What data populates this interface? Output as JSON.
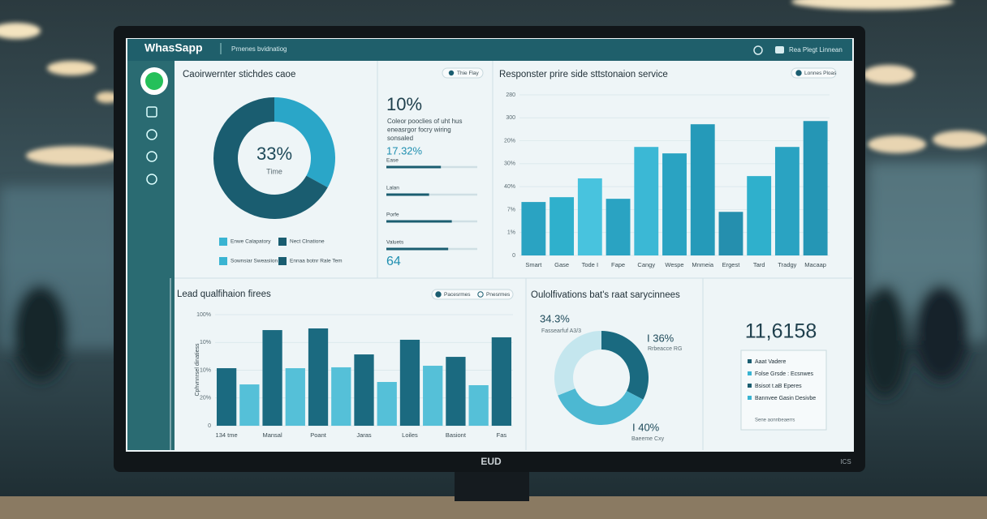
{
  "header": {
    "app": "WhasSapp",
    "subtitle": "Prnenes bvidnatiog",
    "account": "Rea Plegt Linnean"
  },
  "chart_data": [
    {
      "type": "pie",
      "title": "Caoirwernter stichdes caoe",
      "values": [
        33,
        67
      ],
      "colors": [
        "#2aa6c8",
        "#1a5d70"
      ],
      "value_labels": [
        "33%",
        null
      ],
      "center_label": "Time",
      "hole": true,
      "legend": [
        {
          "label": "Enwe Calapatory",
          "color": "#3ab4d2"
        },
        {
          "label": "Nect Clnatione",
          "color": "#1a5d70"
        },
        {
          "label": "Sownsiar Sweasiion",
          "color": "#3ab4d2"
        },
        {
          "label": "Ennaa botnr Rale Tem",
          "color": "#1a5d70"
        }
      ]
    },
    {
      "type": "progress",
      "toggle": "Thie Flay",
      "headline": "10%",
      "description": [
        "Coleor pooclies of uht hus",
        "eneasrgor focry wiring",
        "sonsaled"
      ],
      "highlight": "17.32%",
      "categories": [
        "Ease",
        "Lalan",
        "Porfe",
        "Valuets"
      ],
      "values": [
        60,
        47,
        72,
        68
      ],
      "xlim": [
        0,
        100
      ],
      "color": "#1a5d70",
      "footer": "64"
    },
    {
      "type": "bar",
      "title": "Responster prire side sttstonaion service",
      "toggles": [
        "Lonnes Ploas"
      ],
      "categories": [
        "Smart",
        "Gase",
        "Tode I",
        "Fape",
        "Cangy",
        "Wespe",
        "Mnmeia",
        "Ergest",
        "Tard",
        "Tradgy",
        "Macaap"
      ],
      "values": [
        2.33,
        2.54,
        3.36,
        2.47,
        4.73,
        4.45,
        5.72,
        1.9,
        3.46,
        4.73,
        5.86
      ],
      "colors": [
        "#2aa3c2",
        "#2fb0cc",
        "#48c3de",
        "#2aa3c2",
        "#3bb8d5",
        "#2aa3c2",
        "#259ab9",
        "#258fae",
        "#2fb0cc",
        "#2aa3c2",
        "#2596b5"
      ],
      "ylim": [
        0,
        7
      ],
      "yticks": [
        0,
        {
          "value": 1,
          "label": "1%"
        },
        {
          "value": 2,
          "label": "7%"
        },
        {
          "value": 3,
          "label": "40%"
        },
        {
          "value": 4,
          "label": "30%"
        },
        {
          "value": 5,
          "label": "20%"
        },
        {
          "value": 6,
          "label": "300"
        },
        {
          "value": 7,
          "label": "280"
        }
      ],
      "grid": true
    },
    {
      "type": "bar",
      "title": "Lead qualfihaion firees",
      "ylabel": "Cphvnnrsel dinatiess",
      "toggles": [
        "Pacesrmes",
        "Pnesrmes"
      ],
      "categories": [
        "134 tme",
        null,
        "Mansal",
        null,
        "Poant",
        null,
        "Jaras",
        null,
        "Loiles",
        null,
        "Basiont",
        null,
        "Fas"
      ],
      "values": [
        51.8,
        37.2,
        86.1,
        51.8,
        87.6,
        52.6,
        64.2,
        39.4,
        77.4,
        54.0,
        62.0,
        36.5,
        79.6
      ],
      "colors": [
        "#1b6a80",
        "#55c0d8",
        "#1b6a80",
        "#55c0d8",
        "#1b6a80",
        "#55c0d8",
        "#1b6a80",
        "#55c0d8",
        "#1b6a80",
        "#55c0d8",
        "#1b6a80",
        "#55c0d8",
        "#1b6a80"
      ],
      "ylim": [
        0,
        100
      ],
      "yticks": [
        0,
        {
          "value": 25,
          "label": "20%"
        },
        {
          "value": 50,
          "label": "10%"
        },
        {
          "value": 75,
          "label": "10%"
        },
        {
          "value": 100,
          "label": "100%"
        }
      ],
      "grid": true
    },
    {
      "type": "pie",
      "title": "Oulolfivations bat's raat sarycinnees",
      "categories": [
        "Rrbeacce RG",
        "Baeeme Cxy",
        "Fassearfuf A3/3"
      ],
      "values": [
        36,
        40,
        34.3
      ],
      "value_labels": [
        "I 36%",
        "I 40%",
        "34.3%"
      ],
      "colors": [
        "#1a6a80",
        "#4cb8d2",
        "#c4e6ee"
      ],
      "hole": true
    }
  ],
  "kpi": {
    "value": "11,6158",
    "box": {
      "items": [
        {
          "label": "Aaat Vadere",
          "color": "#1a5d70"
        },
        {
          "label": "Folse Grsde : Ecsnwes",
          "color": "#3ab4d2"
        },
        {
          "label": "Bsisot t.aB Eperes",
          "color": "#1a5d70"
        },
        {
          "label": "Bannvee Gasin Desivbe",
          "color": "#3ab4d2"
        }
      ],
      "note": "Sene aonnbeaerrs"
    }
  },
  "monitor": {
    "brand": "EUD",
    "badge": "ICS"
  }
}
